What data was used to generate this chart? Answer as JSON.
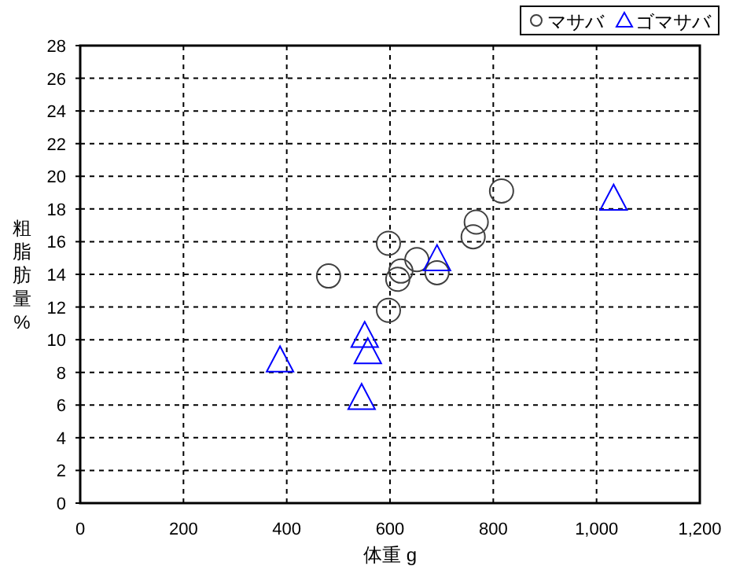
{
  "chart_data": {
    "type": "scatter",
    "xlabel": "体重 g",
    "ylabel": "粗脂肪量%",
    "xlim": [
      0,
      1200
    ],
    "xticks": [
      0,
      {
        "value": 200,
        "label": "200"
      },
      {
        "value": 400,
        "label": "400"
      },
      {
        "value": 600,
        "label": "600"
      },
      {
        "value": 800,
        "label": "800"
      },
      {
        "value": 1000,
        "label": "1,000"
      },
      {
        "value": 1200,
        "label": "1,200"
      }
    ],
    "ylim": [
      0,
      28
    ],
    "yticks": [
      0,
      2,
      4,
      6,
      8,
      10,
      12,
      14,
      16,
      18,
      20,
      22,
      24,
      26,
      28
    ],
    "grid": true,
    "legend": "top right",
    "series": [
      {
        "name": "マサバ",
        "color": "#404040",
        "marker": "circle",
        "x": [
          481,
          597,
          597,
          621,
          615,
          652,
          691,
          761,
          767,
          816
        ],
        "values": [
          13.9,
          15.9,
          11.8,
          14.2,
          13.7,
          14.9,
          14.1,
          16.3,
          17.2,
          19.1
        ]
      },
      {
        "name": "ゴマサバ",
        "color": "#0000ff",
        "marker": "triangle",
        "x": [
          387,
          551,
          557,
          545,
          691,
          1033
        ],
        "values": [
          8.7,
          10.2,
          9.2,
          6.4,
          14.9,
          18.6
        ]
      }
    ]
  }
}
